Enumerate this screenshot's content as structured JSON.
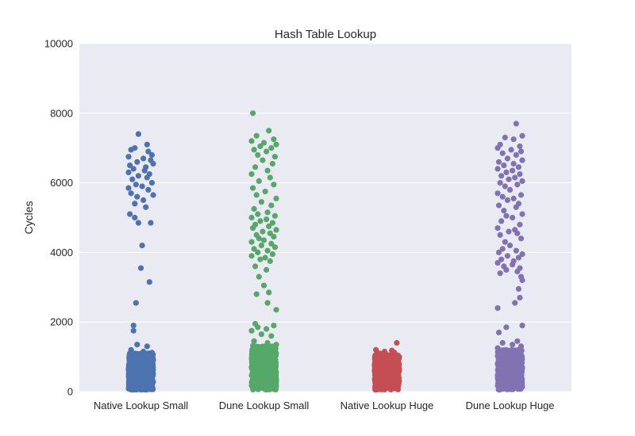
{
  "chart_data": {
    "type": "scatter",
    "title": "Hash Table Lookup",
    "xlabel": "",
    "ylabel": "Cycles",
    "ylim": [
      0,
      10000
    ],
    "yticks": [
      0,
      2000,
      4000,
      6000,
      8000,
      10000
    ],
    "grid": true,
    "legend": "none",
    "plot_background": "#EAEAF2",
    "categories": [
      "Native Lookup Small",
      "Dune Lookup Small",
      "Native Lookup Huge",
      "Dune Lookup Huge"
    ],
    "series": [
      {
        "color": "#4C72B0",
        "dense_range": [
          50,
          1100
        ],
        "dense_count": 900,
        "points": [
          [
            -0.02,
            7400
          ],
          [
            0.05,
            7100
          ],
          [
            -0.08,
            6950
          ],
          [
            0.06,
            6900
          ],
          [
            -0.05,
            7000
          ],
          [
            0.09,
            6800
          ],
          [
            -0.1,
            6750
          ],
          [
            0.02,
            6700
          ],
          [
            0.08,
            6650
          ],
          [
            -0.03,
            6600
          ],
          [
            0.1,
            6550
          ],
          [
            -0.09,
            6500
          ],
          [
            0.04,
            6450
          ],
          [
            -0.06,
            6400
          ],
          [
            0.03,
            6350
          ],
          [
            -0.1,
            6300
          ],
          [
            0.07,
            6250
          ],
          [
            -0.02,
            6200
          ],
          [
            0.05,
            6150
          ],
          [
            -0.07,
            6100
          ],
          [
            0.09,
            6000
          ],
          [
            -0.04,
            5950
          ],
          [
            0.01,
            5900
          ],
          [
            -0.1,
            5850
          ],
          [
            0.06,
            5800
          ],
          [
            -0.08,
            5700
          ],
          [
            0.1,
            5650
          ],
          [
            -0.03,
            5600
          ],
          [
            0.02,
            5500
          ],
          [
            -0.05,
            5400
          ],
          [
            0.04,
            5300
          ],
          [
            -0.09,
            5100
          ],
          [
            -0.05,
            5000
          ],
          [
            0.08,
            4850
          ],
          [
            -0.02,
            4850
          ],
          [
            0.01,
            4200
          ],
          [
            0.0,
            3550
          ],
          [
            0.07,
            3150
          ],
          [
            -0.04,
            2550
          ],
          [
            -0.06,
            1900
          ],
          [
            -0.06,
            1750
          ],
          [
            -0.03,
            1350
          ],
          [
            0.05,
            1300
          ],
          [
            -0.08,
            1200
          ],
          [
            0.02,
            1150
          ],
          [
            0.09,
            1120
          ]
        ]
      },
      {
        "color": "#55A868",
        "dense_range": [
          50,
          1300
        ],
        "dense_count": 1000,
        "points": [
          [
            -0.09,
            8000
          ],
          [
            0.04,
            7500
          ],
          [
            -0.06,
            7350
          ],
          [
            0.08,
            7250
          ],
          [
            -0.1,
            7200
          ],
          [
            0.0,
            7150
          ],
          [
            0.1,
            7100
          ],
          [
            -0.03,
            7050
          ],
          [
            0.06,
            7000
          ],
          [
            -0.08,
            6950
          ],
          [
            0.02,
            6900
          ],
          [
            -0.05,
            6800
          ],
          [
            0.09,
            6750
          ],
          [
            -0.01,
            6650
          ],
          [
            0.07,
            6550
          ],
          [
            -0.07,
            6450
          ],
          [
            0.03,
            6350
          ],
          [
            -0.1,
            6250
          ],
          [
            0.05,
            6150
          ],
          [
            -0.04,
            6050
          ],
          [
            0.08,
            5950
          ],
          [
            -0.09,
            5850
          ],
          [
            0.01,
            5750
          ],
          [
            -0.06,
            5650
          ],
          [
            0.1,
            5550
          ],
          [
            -0.02,
            5450
          ],
          [
            0.06,
            5350
          ],
          [
            -0.08,
            5250
          ],
          [
            0.03,
            5150
          ],
          [
            -0.05,
            5100
          ],
          [
            0.09,
            5050
          ],
          [
            -0.1,
            5000
          ],
          [
            0.02,
            4950
          ],
          [
            -0.03,
            4900
          ],
          [
            0.07,
            4850
          ],
          [
            -0.07,
            4800
          ],
          [
            0.04,
            4750
          ],
          [
            -0.09,
            4700
          ],
          [
            0.1,
            4650
          ],
          [
            -0.01,
            4600
          ],
          [
            0.05,
            4550
          ],
          [
            -0.06,
            4500
          ],
          [
            0.08,
            4450
          ],
          [
            -0.04,
            4400
          ],
          [
            0.0,
            4350
          ],
          [
            -0.1,
            4300
          ],
          [
            0.06,
            4250
          ],
          [
            -0.02,
            4200
          ],
          [
            0.09,
            4150
          ],
          [
            -0.08,
            4100
          ],
          [
            0.03,
            4050
          ],
          [
            -0.05,
            4000
          ],
          [
            0.07,
            3950
          ],
          [
            -0.1,
            3900
          ],
          [
            0.01,
            3850
          ],
          [
            -0.03,
            3800
          ],
          [
            0.05,
            3750
          ],
          [
            -0.07,
            3600
          ],
          [
            0.02,
            3500
          ],
          [
            -0.04,
            3300
          ],
          [
            0.0,
            3050
          ],
          [
            0.04,
            2850
          ],
          [
            -0.06,
            2800
          ],
          [
            0.03,
            2550
          ],
          [
            0.1,
            2350
          ],
          [
            -0.07,
            1950
          ],
          [
            0.08,
            1900
          ],
          [
            -0.05,
            1850
          ],
          [
            0.02,
            1800
          ],
          [
            -0.1,
            1750
          ],
          [
            -0.02,
            1650
          ],
          [
            0.06,
            1600
          ],
          [
            -0.08,
            1450
          ],
          [
            0.03,
            1400
          ],
          [
            0.1,
            1350
          ],
          [
            -0.09,
            1320
          ]
        ]
      },
      {
        "color": "#C44E52",
        "dense_range": [
          50,
          1050
        ],
        "dense_count": 700,
        "points": [
          [
            0.08,
            1400
          ],
          [
            -0.09,
            1200
          ],
          [
            0.04,
            1180
          ],
          [
            -0.02,
            1150
          ],
          [
            0.06,
            1120
          ],
          [
            -0.06,
            1100
          ]
        ]
      },
      {
        "color": "#8172B2",
        "dense_range": [
          50,
          1200
        ],
        "dense_count": 950,
        "points": [
          [
            0.05,
            7700
          ],
          [
            0.1,
            7350
          ],
          [
            -0.04,
            7300
          ],
          [
            0.03,
            7250
          ],
          [
            -0.08,
            7100
          ],
          [
            0.08,
            7050
          ],
          [
            -0.1,
            7000
          ],
          [
            0.01,
            6950
          ],
          [
            0.09,
            6900
          ],
          [
            -0.06,
            6850
          ],
          [
            0.05,
            6800
          ],
          [
            -0.02,
            6700
          ],
          [
            0.1,
            6650
          ],
          [
            -0.09,
            6600
          ],
          [
            0.03,
            6550
          ],
          [
            -0.05,
            6500
          ],
          [
            0.07,
            6450
          ],
          [
            -0.1,
            6400
          ],
          [
            0.02,
            6350
          ],
          [
            -0.03,
            6300
          ],
          [
            0.08,
            6250
          ],
          [
            -0.07,
            6200
          ],
          [
            0.04,
            6150
          ],
          [
            -0.01,
            6100
          ],
          [
            0.1,
            6050
          ],
          [
            -0.08,
            6000
          ],
          [
            0.06,
            5950
          ],
          [
            -0.04,
            5900
          ],
          [
            0.0,
            5800
          ],
          [
            -0.1,
            5700
          ],
          [
            0.09,
            5650
          ],
          [
            -0.06,
            5600
          ],
          [
            0.03,
            5550
          ],
          [
            -0.02,
            5500
          ],
          [
            0.07,
            5400
          ],
          [
            -0.09,
            5350
          ],
          [
            0.05,
            5300
          ],
          [
            -0.05,
            5200
          ],
          [
            0.1,
            5100
          ],
          [
            -0.03,
            5050
          ],
          [
            0.02,
            5000
          ],
          [
            -0.07,
            4900
          ],
          [
            0.08,
            4800
          ],
          [
            -0.1,
            4700
          ],
          [
            0.04,
            4650
          ],
          [
            -0.01,
            4600
          ],
          [
            0.06,
            4550
          ],
          [
            -0.08,
            4500
          ],
          [
            0.09,
            4400
          ],
          [
            -0.04,
            4300
          ],
          [
            0.0,
            4200
          ],
          [
            -0.06,
            4100
          ],
          [
            0.05,
            4050
          ],
          [
            -0.09,
            4000
          ],
          [
            0.1,
            3950
          ],
          [
            -0.02,
            3900
          ],
          [
            0.07,
            3850
          ],
          [
            -0.07,
            3800
          ],
          [
            0.03,
            3750
          ],
          [
            -0.1,
            3700
          ],
          [
            0.02,
            3650
          ],
          [
            -0.05,
            3600
          ],
          [
            0.08,
            3550
          ],
          [
            -0.03,
            3500
          ],
          [
            0.06,
            3450
          ],
          [
            -0.08,
            3400
          ],
          [
            0.09,
            3300
          ],
          [
            0.1,
            3200
          ],
          [
            0.07,
            2950
          ],
          [
            0.08,
            2700
          ],
          [
            0.04,
            2550
          ],
          [
            -0.1,
            2400
          ],
          [
            0.1,
            1900
          ],
          [
            -0.03,
            1850
          ],
          [
            -0.09,
            1700
          ],
          [
            0.06,
            1450
          ],
          [
            -0.06,
            1400
          ],
          [
            0.02,
            1350
          ],
          [
            0.09,
            1300
          ],
          [
            -0.1,
            1250
          ]
        ]
      }
    ]
  }
}
